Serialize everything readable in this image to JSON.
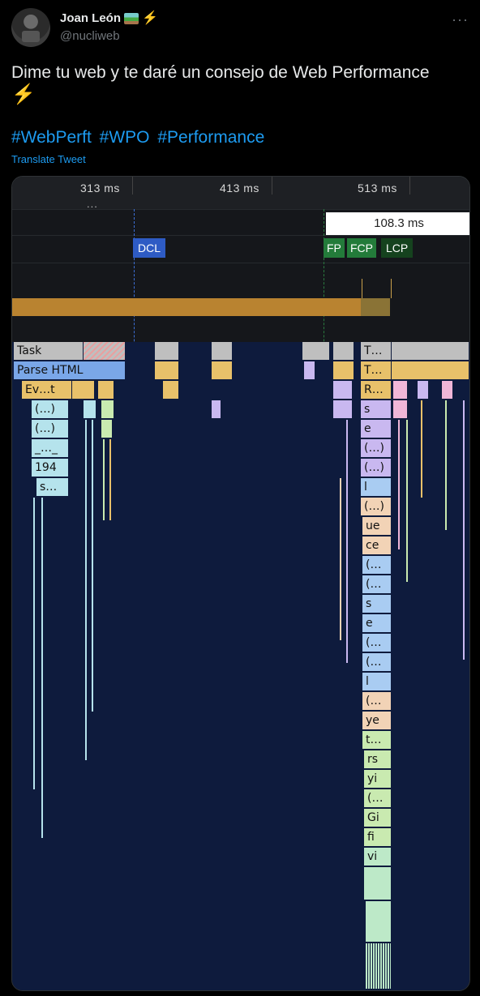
{
  "author": {
    "name": "Joan León",
    "handle": "@nucliweb",
    "avatar_icon": "profile-photo",
    "badges": [
      "photo-emoji-icon",
      "lightning-bolt-icon"
    ]
  },
  "tweet": {
    "text": "Dime tu web y te daré un consejo de Web Performance",
    "emoji": "⚡",
    "hashtags": [
      "#WebPerft",
      "#WPO",
      "#Performance"
    ],
    "translate_label": "Translate Tweet"
  },
  "menu_icon": "more-icon",
  "profiler": {
    "ticks": [
      "313 ms",
      "413 ms",
      "513 ms"
    ],
    "ellipsis": "...",
    "duration": "108.3 ms",
    "markers": {
      "dcl": "DCL",
      "fp": "FP",
      "fcp": "FCP",
      "lcp": "LCP"
    },
    "flame_labels": {
      "task": "Task",
      "parse_html": "Parse HTML",
      "evt": "Ev…t",
      "paren1": "(…)",
      "paren2": "(…)",
      "underscore": "_…_",
      "num": "194",
      "s_dots": "s…",
      "t1": "T…",
      "t2": "T…",
      "r": "R…",
      "right_stack": [
        "s",
        "e",
        "(…)",
        "(…)",
        "l",
        "(…)",
        "ue",
        "ce",
        "(…",
        "(…",
        "s",
        "e",
        "(…",
        "(…",
        "l",
        "(…",
        "ye",
        "t…",
        "rs",
        "yi",
        "(…",
        "Gi",
        "fi",
        "vi"
      ]
    }
  }
}
